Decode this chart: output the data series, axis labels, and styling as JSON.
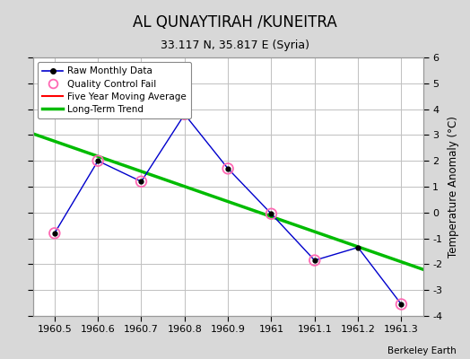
{
  "title": "AL QUNAYTIRAH /KUNEITRA",
  "subtitle": "33.117 N, 35.817 E (Syria)",
  "ylabel": "Temperature Anomaly (°C)",
  "footer": "Berkeley Earth",
  "xlim": [
    1960.45,
    1961.35
  ],
  "ylim": [
    -4,
    6
  ],
  "yticks": [
    -4,
    -3,
    -2,
    -1,
    0,
    1,
    2,
    3,
    4,
    5,
    6
  ],
  "xticks": [
    1960.5,
    1960.6,
    1960.7,
    1960.8,
    1960.9,
    1961.0,
    1961.1,
    1961.2,
    1961.3
  ],
  "xtick_labels": [
    "1960.5",
    "1960.6",
    "1960.7",
    "1960.8",
    "1960.9",
    "1961",
    "1961.1",
    "1961.2",
    "1961.3"
  ],
  "raw_x": [
    1960.5,
    1960.6,
    1960.7,
    1960.8,
    1960.9,
    1961.0,
    1961.1,
    1961.2,
    1961.3
  ],
  "raw_y": [
    -0.8,
    2.0,
    1.2,
    3.8,
    1.7,
    -0.05,
    -1.85,
    -1.35,
    -3.55
  ],
  "qc_fail_x": [
    1960.5,
    1960.6,
    1960.7,
    1960.8,
    1960.9,
    1961.0,
    1961.1,
    1961.3
  ],
  "qc_fail_y": [
    -0.8,
    2.0,
    1.2,
    3.8,
    1.7,
    -0.05,
    -1.85,
    -3.55
  ],
  "trend_x": [
    1960.45,
    1961.35
  ],
  "trend_y": [
    3.05,
    -2.2
  ],
  "raw_color": "#0000cc",
  "qc_color": "#ff69b4",
  "trend_color": "#00bb00",
  "ma_color": "#ff0000",
  "bg_color": "#d8d8d8",
  "plot_bg_color": "#ffffff",
  "grid_color": "#c0c0c0"
}
